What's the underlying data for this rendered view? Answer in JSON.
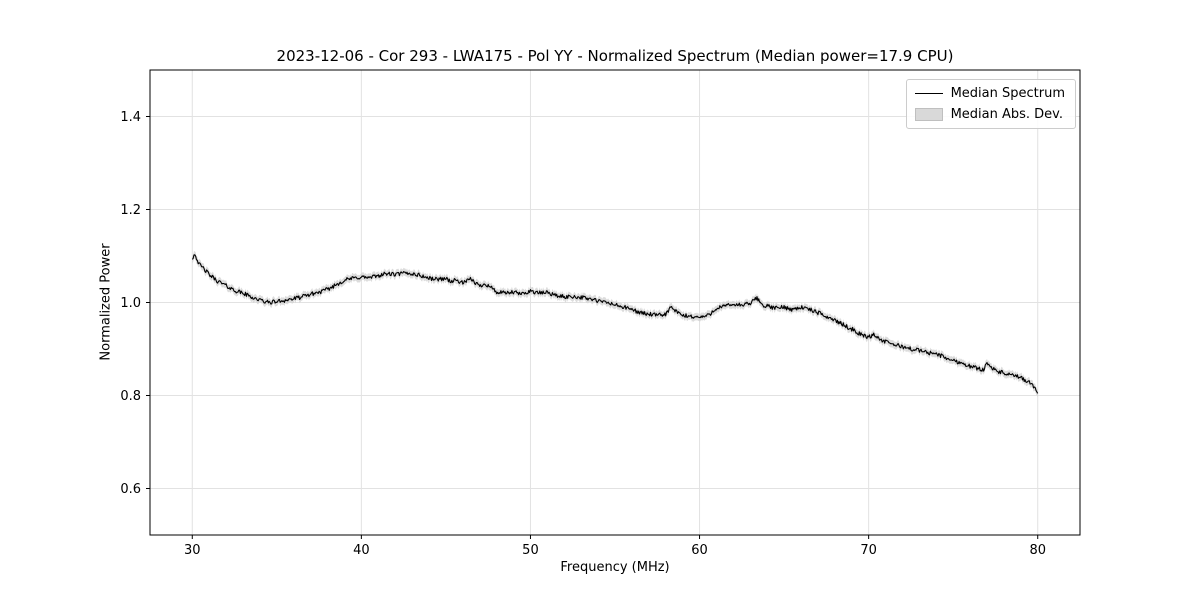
{
  "figure": {
    "title": "2023-12-06 - Cor 293 - LWA175 - Pol YY - Normalized Spectrum (Median power=17.9 CPU)",
    "xlabel": "Frequency (MHz)",
    "ylabel": "Normalized Power"
  },
  "legend": {
    "items": [
      {
        "label": "Median Spectrum",
        "type": "line",
        "color": "#000000"
      },
      {
        "label": "Median Abs. Dev.",
        "type": "band",
        "color": "#d9d9d9"
      }
    ]
  },
  "chart_data": {
    "type": "line",
    "title": "2023-12-06 - Cor 293 - LWA175 - Pol YY - Normalized Spectrum (Median power=17.9 CPU)",
    "xlabel": "Frequency (MHz)",
    "ylabel": "Normalized Power",
    "xlim": [
      27.5,
      82.5
    ],
    "ylim": [
      0.5,
      1.5
    ],
    "xticks": [
      30,
      40,
      50,
      60,
      70,
      80
    ],
    "yticks": [
      0.6,
      0.8,
      1.0,
      1.2,
      1.4
    ],
    "grid": true,
    "legend_position": "upper right",
    "noise_amplitude": 0.0045,
    "series": [
      {
        "name": "Median Spectrum",
        "color": "#000000",
        "points": [
          [
            30.0,
            1.095
          ],
          [
            30.15,
            1.105
          ],
          [
            30.4,
            1.082
          ],
          [
            30.7,
            1.072
          ],
          [
            31.0,
            1.06
          ],
          [
            31.5,
            1.046
          ],
          [
            32.0,
            1.036
          ],
          [
            32.5,
            1.026
          ],
          [
            33.0,
            1.02
          ],
          [
            33.5,
            1.012
          ],
          [
            34.0,
            1.005
          ],
          [
            34.5,
            1.0
          ],
          [
            35.0,
            1.002
          ],
          [
            35.5,
            1.005
          ],
          [
            36.0,
            1.008
          ],
          [
            36.5,
            1.012
          ],
          [
            37.0,
            1.018
          ],
          [
            37.5,
            1.022
          ],
          [
            38.0,
            1.028
          ],
          [
            38.5,
            1.038
          ],
          [
            39.0,
            1.048
          ],
          [
            39.5,
            1.052
          ],
          [
            40.0,
            1.055
          ],
          [
            40.5,
            1.053
          ],
          [
            41.0,
            1.058
          ],
          [
            41.5,
            1.062
          ],
          [
            42.0,
            1.06
          ],
          [
            42.5,
            1.063
          ],
          [
            43.0,
            1.062
          ],
          [
            43.5,
            1.058
          ],
          [
            44.0,
            1.052
          ],
          [
            44.5,
            1.05
          ],
          [
            45.0,
            1.052
          ],
          [
            45.3,
            1.045
          ],
          [
            45.6,
            1.048
          ],
          [
            46.0,
            1.042
          ],
          [
            46.5,
            1.05
          ],
          [
            47.0,
            1.035
          ],
          [
            47.3,
            1.041
          ],
          [
            47.7,
            1.032
          ],
          [
            48.0,
            1.022
          ],
          [
            48.5,
            1.02
          ],
          [
            49.0,
            1.022
          ],
          [
            49.5,
            1.018
          ],
          [
            50.0,
            1.025
          ],
          [
            50.5,
            1.02
          ],
          [
            51.0,
            1.022
          ],
          [
            51.5,
            1.015
          ],
          [
            52.0,
            1.012
          ],
          [
            52.5,
            1.013
          ],
          [
            53.0,
            1.011
          ],
          [
            53.5,
            1.008
          ],
          [
            54.0,
            1.003
          ],
          [
            54.5,
            1.0
          ],
          [
            55.0,
            0.995
          ],
          [
            55.5,
            0.99
          ],
          [
            56.0,
            0.985
          ],
          [
            56.5,
            0.978
          ],
          [
            57.0,
            0.975
          ],
          [
            57.5,
            0.972
          ],
          [
            58.0,
            0.975
          ],
          [
            58.3,
            0.99
          ],
          [
            58.7,
            0.978
          ],
          [
            59.0,
            0.972
          ],
          [
            59.5,
            0.97
          ],
          [
            60.0,
            0.968
          ],
          [
            60.5,
            0.972
          ],
          [
            61.0,
            0.988
          ],
          [
            61.5,
            0.992
          ],
          [
            62.0,
            0.996
          ],
          [
            62.5,
            0.994
          ],
          [
            63.0,
            0.998
          ],
          [
            63.4,
            1.01
          ],
          [
            63.7,
            0.995
          ],
          [
            64.0,
            0.992
          ],
          [
            64.5,
            0.988
          ],
          [
            65.0,
            0.99
          ],
          [
            65.5,
            0.985
          ],
          [
            66.0,
            0.99
          ],
          [
            66.5,
            0.985
          ],
          [
            67.0,
            0.978
          ],
          [
            67.5,
            0.97
          ],
          [
            68.0,
            0.962
          ],
          [
            68.5,
            0.952
          ],
          [
            69.0,
            0.943
          ],
          [
            69.5,
            0.932
          ],
          [
            70.0,
            0.925
          ],
          [
            70.3,
            0.932
          ],
          [
            70.7,
            0.92
          ],
          [
            71.0,
            0.915
          ],
          [
            71.5,
            0.91
          ],
          [
            72.0,
            0.905
          ],
          [
            72.5,
            0.9
          ],
          [
            73.0,
            0.897
          ],
          [
            73.5,
            0.892
          ],
          [
            74.0,
            0.89
          ],
          [
            74.5,
            0.882
          ],
          [
            75.0,
            0.875
          ],
          [
            75.5,
            0.87
          ],
          [
            76.0,
            0.863
          ],
          [
            76.5,
            0.858
          ],
          [
            76.8,
            0.855
          ],
          [
            77.0,
            0.873
          ],
          [
            77.3,
            0.858
          ],
          [
            77.6,
            0.852
          ],
          [
            78.0,
            0.848
          ],
          [
            78.5,
            0.843
          ],
          [
            79.0,
            0.838
          ],
          [
            79.5,
            0.828
          ],
          [
            79.8,
            0.818
          ],
          [
            80.0,
            0.8
          ]
        ]
      },
      {
        "name": "Median Abs. Dev.",
        "type": "band",
        "color": "#d0d0d0",
        "band_halfwidth": 0.008
      }
    ]
  }
}
